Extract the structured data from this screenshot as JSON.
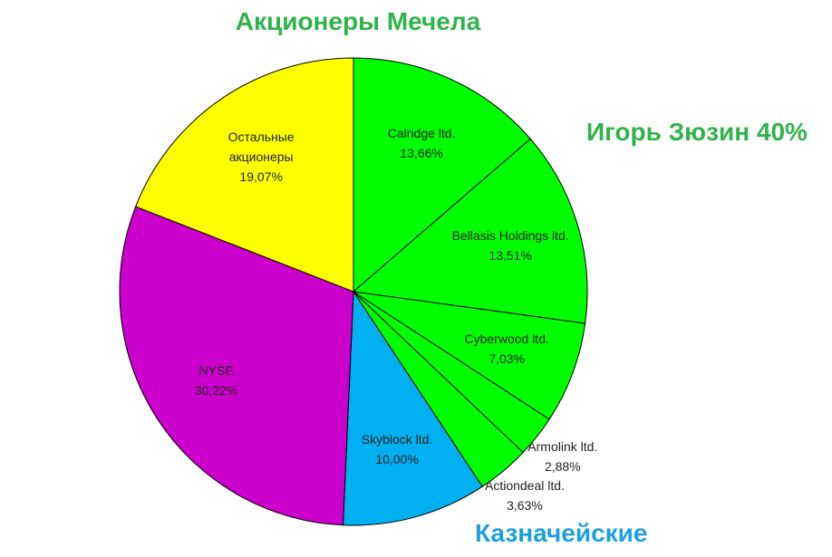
{
  "chart_data": {
    "type": "pie",
    "title": "Акционеры Мечела",
    "title_color": "#2fb34a",
    "categories": [
      "Calridge ltd.",
      "Bellasis Holdings ltd.",
      "Cyberwood ltd.",
      "Armolink ltd.",
      "Actiondeal ltd.",
      "Skyblock ltd.",
      "NYSE",
      "Остальные акционеры"
    ],
    "values": [
      13.66,
      13.51,
      7.03,
      2.88,
      3.63,
      10.0,
      30.22,
      19.07
    ],
    "value_labels": [
      "13,66%",
      "13,51%",
      "7,03%",
      "2,88%",
      "3,63%",
      "10,00%",
      "30,22%",
      "19,07%"
    ],
    "colors": [
      "#00ff00",
      "#00ff00",
      "#00ff00",
      "#00ff00",
      "#00ff00",
      "#00b0f0",
      "#cc00cc",
      "#ffff00"
    ],
    "annotations": [
      {
        "text": "Игорь Зюзин 40%",
        "color": "#2fb34a"
      },
      {
        "text": "Казначейские",
        "color": "#1ea0e0"
      }
    ]
  }
}
